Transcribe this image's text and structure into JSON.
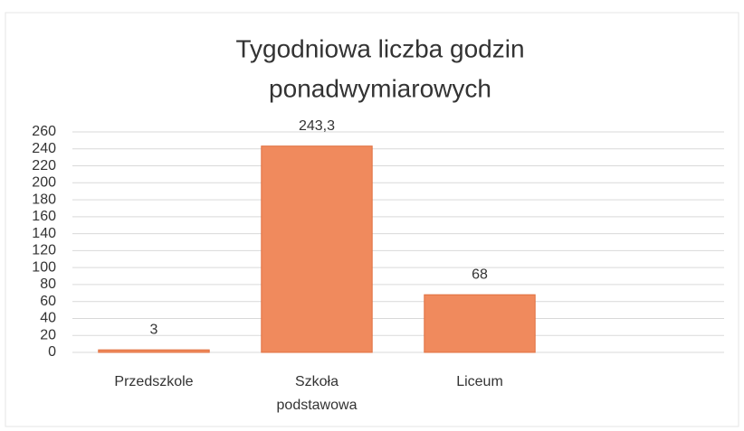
{
  "chart_data": {
    "type": "bar",
    "title": [
      "Tygodniowa liczba godzin",
      "ponadwymiarowych"
    ],
    "categories": [
      "Przedszkole",
      "Szkoła podstawowa",
      "Liceum",
      null
    ],
    "values": [
      3,
      243.3,
      68,
      null
    ],
    "value_labels": [
      "3",
      "243,3",
      "68",
      null
    ],
    "color": "#f08a5d",
    "ylim": [
      0,
      260
    ],
    "yticks": [
      0,
      20,
      40,
      60,
      80,
      100,
      120,
      140,
      160,
      180,
      200,
      220,
      240,
      260
    ],
    "grid": true
  }
}
